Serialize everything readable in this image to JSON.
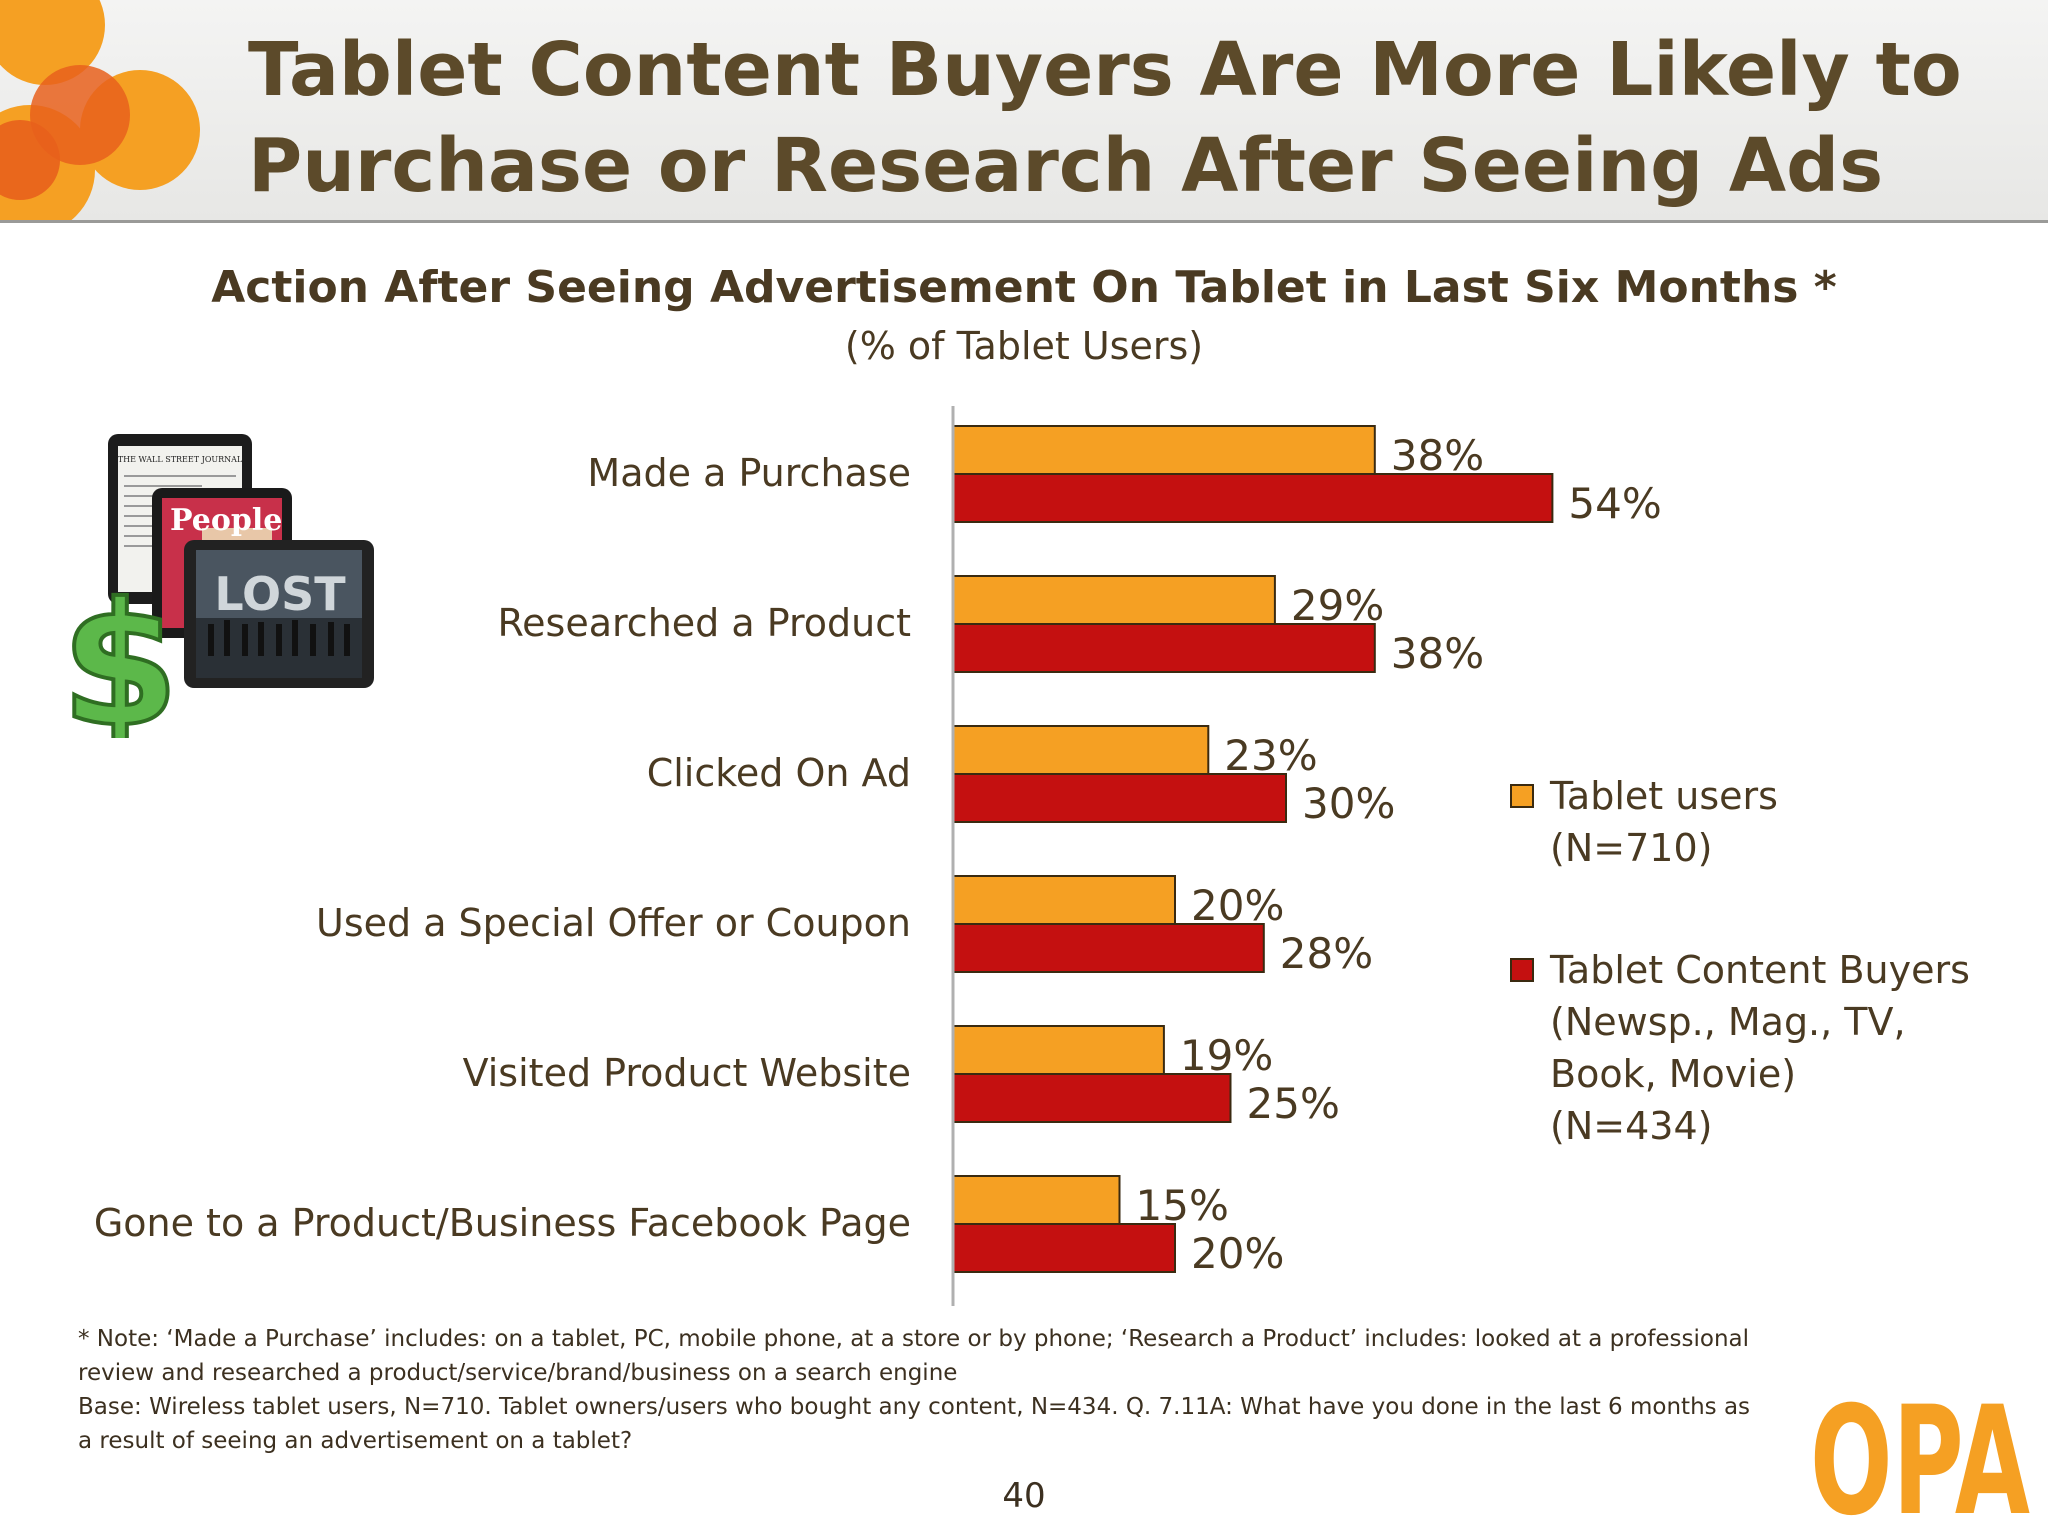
{
  "header": {
    "title_line1": "Tablet Content Buyers Are More Likely to",
    "title_line2": "Purchase or Research After Seeing Ads"
  },
  "chart_data": {
    "type": "bar",
    "orientation": "horizontal",
    "title": "Action After Seeing Advertisement On Tablet in Last Six Months *",
    "subtitle": "(% of Tablet Users)",
    "categories": [
      "Made a Purchase",
      "Researched a Product",
      "Clicked On Ad",
      "Used a Special Offer or Coupon",
      "Visited Product Website",
      "Gone to a Product/Business Facebook Page"
    ],
    "series": [
      {
        "name": "Tablet users (N=710)",
        "values": [
          38,
          29,
          23,
          20,
          19,
          15
        ],
        "labels": [
          "38%",
          "29%",
          "23%",
          "20%",
          "19%",
          "15%"
        ],
        "color": "#f5a023"
      },
      {
        "name": "Tablet Content Buyers (Newsp., Mag., TV, Book, Movie) (N=434)",
        "values": [
          54,
          38,
          30,
          28,
          25,
          20
        ],
        "labels": [
          "54%",
          "38%",
          "30%",
          "28%",
          "25%",
          "20%"
        ],
        "color": "#c41010"
      }
    ],
    "xlim": [
      0,
      100
    ],
    "grid": false,
    "legend_position": "right"
  },
  "legend": {
    "items": [
      {
        "lines": [
          "Tablet users",
          "(N=710)"
        ],
        "color": "#f5a023"
      },
      {
        "lines": [
          "Tablet Content Buyers",
          "(Newsp., Mag., TV,",
          "Book, Movie)",
          "(N=434)"
        ],
        "color": "#c41010"
      }
    ]
  },
  "footnote": {
    "line1": "* Note: ‘Made a Purchase’ includes: on a tablet, PC, mobile phone, at a store or by phone; ‘Research a Product’ includes: looked at a professional",
    "line2": "review and researched a product/service/brand/business on a search engine",
    "line3": "Base: Wireless tablet users, N=710. Tablet owners/users who bought any content, N=434. Q. 7.11A:  What have you done in the last 6 months as",
    "line4": "a result of seeing an advertisement on a tablet?"
  },
  "page_number": "40",
  "illustration": {
    "newspaper_text": "THE WALL STREET JOURNAL",
    "magazine_text": "People",
    "screen_text": "LOST",
    "currency_symbol": "$"
  },
  "logo": {
    "text": "OPA",
    "color": "#f5a023"
  }
}
